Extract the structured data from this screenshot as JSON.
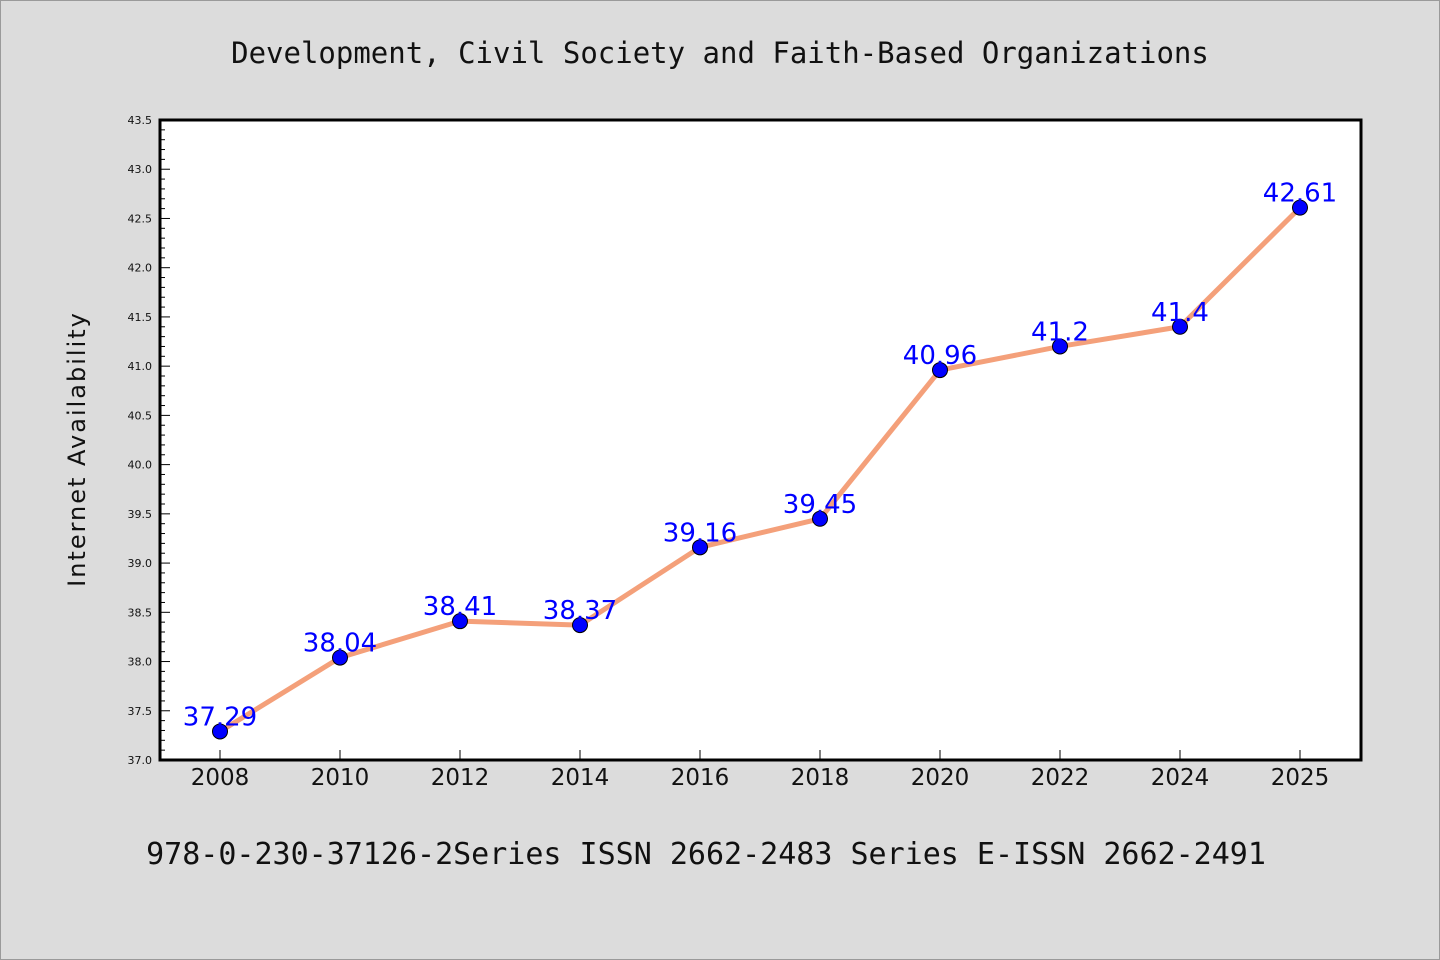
{
  "chart_data": {
    "type": "line",
    "title": "Development, Civil Society and Faith-Based Organizations",
    "xlabel": "",
    "ylabel": "Internet Availability",
    "footer": "978-0-230-37126-2Series ISSN 2662-2483 Series E-ISSN 2662-2491",
    "categories": [
      "2008",
      "2010",
      "2012",
      "2014",
      "2016",
      "2018",
      "2020",
      "2022",
      "2024",
      "2025"
    ],
    "values": [
      37.29,
      38.04,
      38.41,
      38.37,
      39.16,
      39.45,
      40.96,
      41.2,
      41.4,
      42.61
    ],
    "data_labels": [
      "37.29",
      "38.04",
      "38.41",
      "38.37",
      "39.16",
      "39.45",
      "40.96",
      "41.2",
      "41.4",
      "42.61"
    ],
    "ylim": [
      37.0,
      43.5
    ],
    "yticks": [
      "37.0",
      "37.5",
      "38.0",
      "38.5",
      "39.0",
      "39.5",
      "40.0",
      "40.5",
      "41.0",
      "41.5",
      "42.0",
      "42.5",
      "43.0",
      "43.5"
    ],
    "grid": false,
    "legend": "none",
    "colors": {
      "line": "#f4a07a",
      "marker": "#0000ff",
      "label": "#0000ff",
      "background": "#dcdcdc",
      "plot_background": "#ffffff"
    }
  }
}
